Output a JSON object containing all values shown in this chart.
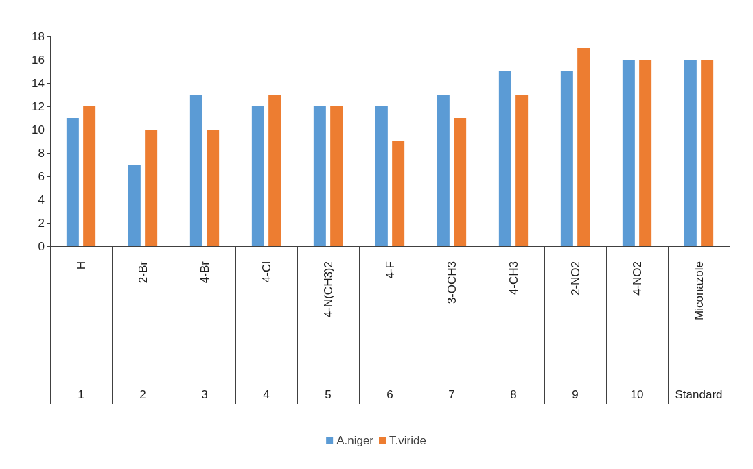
{
  "chart_data": {
    "type": "bar",
    "categories": [
      "H",
      "2-Br",
      "4-Br",
      "4-Cl",
      "4-N(CH3)2",
      "4-F",
      "3-OCH3",
      "4-CH3",
      "2-NO2",
      "4-NO2",
      "Miconazole"
    ],
    "series": [
      {
        "name": "A.niger",
        "color": "#5b9bd5",
        "values": [
          11,
          7,
          13,
          12,
          12,
          12,
          13,
          15,
          15,
          16,
          16
        ]
      },
      {
        "name": "T.viride",
        "color": "#ed7d31",
        "values": [
          12,
          10,
          10,
          13,
          12,
          9,
          11,
          13,
          17,
          16,
          16
        ]
      }
    ],
    "annotations": [
      "1",
      "2",
      "3",
      "4",
      "5",
      "6",
      "7",
      "8",
      "9",
      "10",
      "Standard"
    ],
    "ylim": [
      0,
      18
    ],
    "yticks": [
      0,
      2,
      4,
      6,
      8,
      10,
      12,
      14,
      16,
      18
    ],
    "grid": false,
    "legend": "bottom"
  }
}
